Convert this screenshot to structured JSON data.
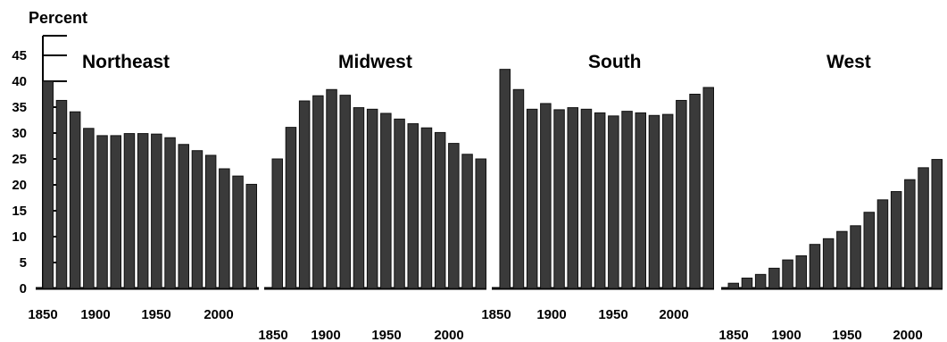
{
  "chart_data": {
    "type": "bar",
    "ylabel": "Percent",
    "ylim": [
      0,
      48
    ],
    "yticks": [
      0,
      5,
      10,
      15,
      20,
      25,
      30,
      35,
      40,
      45
    ],
    "grid": false,
    "x_tick_labels": [
      "1850",
      "1900",
      "1950",
      "2000"
    ],
    "bar_color": "#3a3a3a",
    "panels": [
      {
        "title": "Northeast",
        "x_start": 1850,
        "x_step": 10,
        "values": [
          40.0,
          36.3,
          34.1,
          30.9,
          29.5,
          29.5,
          29.9,
          29.9,
          29.8,
          29.1,
          27.8,
          26.6,
          25.7,
          23.1,
          21.7,
          20.1
        ]
      },
      {
        "title": "Midwest",
        "x_start": 1850,
        "x_step": 10,
        "values": [
          25.0,
          31.1,
          36.2,
          37.2,
          38.4,
          37.3,
          34.9,
          34.6,
          33.8,
          32.7,
          31.8,
          31.0,
          30.1,
          28.0,
          25.9,
          25.0
        ]
      },
      {
        "title": "South",
        "x_start": 1850,
        "x_step": 10,
        "values": [
          42.3,
          38.4,
          34.6,
          35.7,
          34.5,
          34.9,
          34.6,
          33.9,
          33.3,
          34.2,
          33.9,
          33.4,
          33.6,
          36.3,
          37.5,
          38.8
        ]
      },
      {
        "title": "West",
        "x_start": 1850,
        "x_step": 10,
        "values": [
          1.0,
          2.0,
          2.7,
          3.9,
          5.5,
          6.3,
          8.5,
          9.6,
          11.0,
          12.1,
          14.7,
          17.1,
          18.7,
          21.0,
          23.3,
          24.9
        ]
      }
    ]
  }
}
